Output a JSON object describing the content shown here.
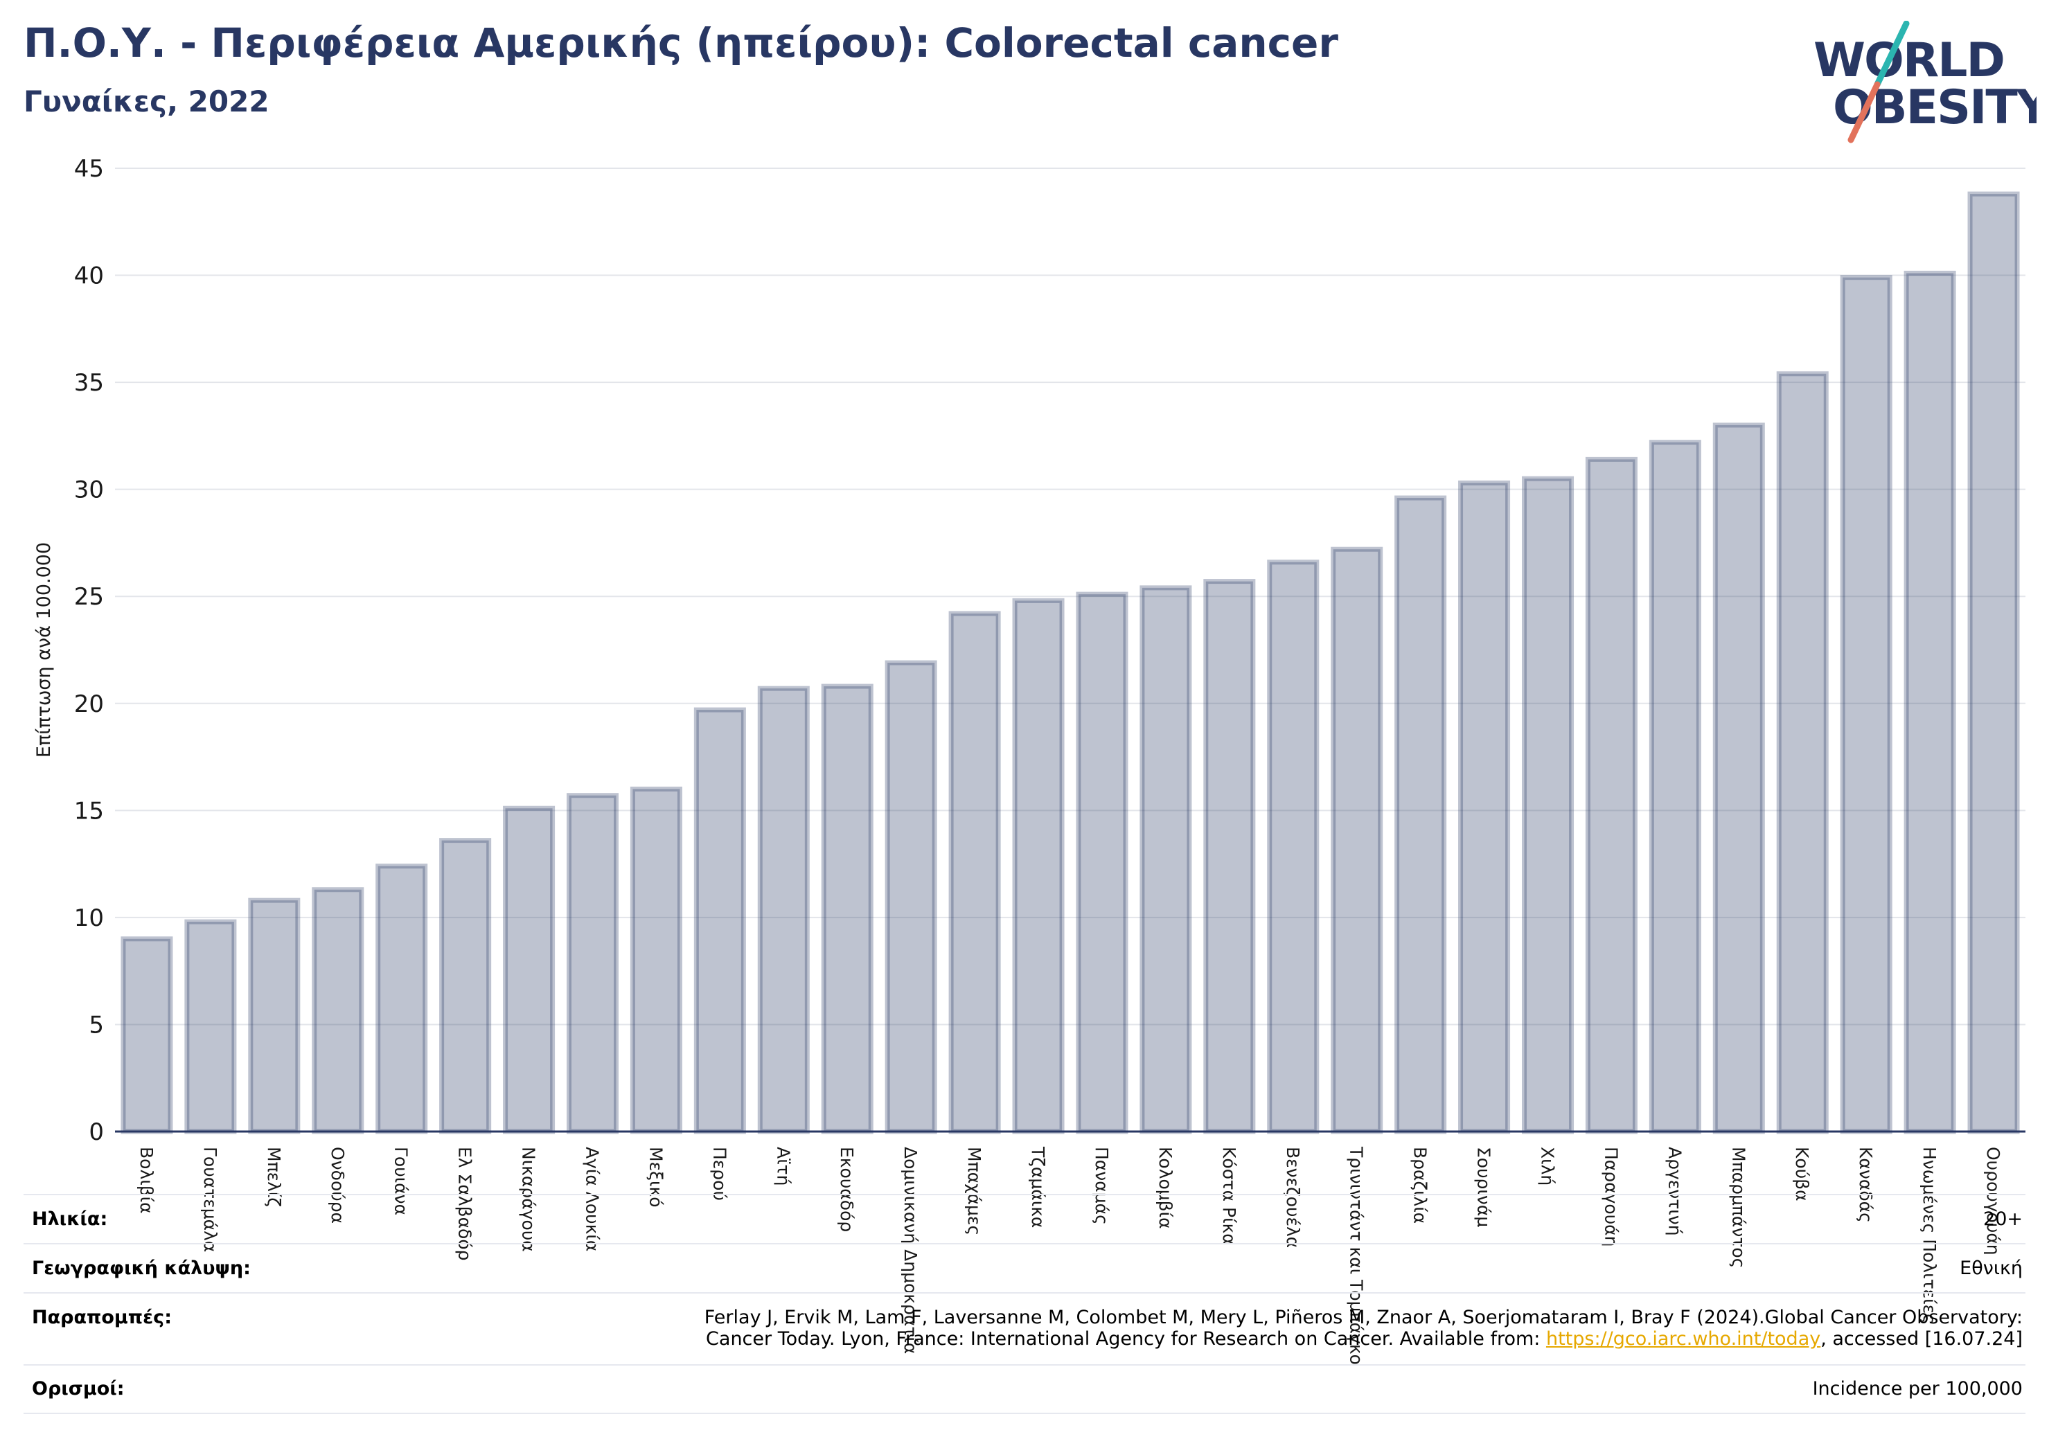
{
  "header": {
    "title": "Π.Ο.Υ. - Περιφέρεια Αμερικής (ηπείρου): Colorectal cancer",
    "subtitle": "Γυναίκες, 2022"
  },
  "logo": {
    "line1": "WORLD",
    "line2": "OBESITY",
    "text_color": "#283763",
    "slash_top_color": "#2bb5b0",
    "slash_bottom_color": "#e2725b"
  },
  "chart_data": {
    "type": "bar",
    "title": "Π.Ο.Υ. - Περιφέρεια Αμερικής (ηπείρου): Colorectal cancer",
    "subtitle": "Γυναίκες, 2022",
    "ylabel": "Επίπτωση ανά 100.000",
    "xlabel": "",
    "ylim": [
      0,
      45
    ],
    "yticks": [
      0,
      5,
      10,
      15,
      20,
      25,
      30,
      35,
      40,
      45
    ],
    "grid": true,
    "bar_color": "#283763",
    "categories": [
      "Βολιβία",
      "Γουατεμάλα",
      "Μπελίζ",
      "Ονδούρα",
      "Γουιάνα",
      "Ελ Σαλβαδόρ",
      "Νικαράγουα",
      "Αγία Λουκία",
      "Μεξικό",
      "Περού",
      "Αϊτή",
      "Εκουαδόρ",
      "Δομινικανή Δημοκρατία",
      "Μπαχάμες",
      "Τζαμάικα",
      "Παναμάς",
      "Κολομβία",
      "Κόστα Ρίκα",
      "Βενεζουέλα",
      "Τρινιντάντ και Τομπάγκο",
      "Βραζιλία",
      "Σουρινάμ",
      "Χιλή",
      "Παραγουάη",
      "Αργεντινή",
      "Μπαρμπάντος",
      "Κούβα",
      "Καναδάς",
      "Ηνωμένες Πολιτείες",
      "Ουρουγουάη"
    ],
    "values": [
      9.0,
      9.8,
      10.8,
      11.3,
      12.4,
      13.6,
      15.1,
      15.7,
      16.0,
      19.7,
      20.7,
      20.8,
      21.9,
      24.2,
      24.8,
      25.1,
      25.4,
      25.7,
      26.6,
      27.2,
      29.6,
      30.3,
      30.5,
      31.4,
      32.2,
      33.0,
      35.4,
      39.9,
      40.1,
      43.8
    ]
  },
  "footer": {
    "age_label": "Ηλικία:",
    "age_value": "20+",
    "coverage_label": "Γεωγραφική κάλυψη:",
    "coverage_value": "Εθνική",
    "refs_label": "Παραπομπές:",
    "refs_line1": "Ferlay J, Ervik M, Lam F, Laversanne M, Colombet M, Mery L, Piñeros M, Znaor A, Soerjomataram I, Bray F (2024).Global Cancer Observatory:",
    "refs_line2_pre": "Cancer Today. Lyon, France: International Agency for Research on Cancer. Available from: ",
    "refs_link": "https://gco.iarc.who.int/today",
    "refs_line2_post": ", accessed [16.07.24]",
    "defs_label": "Ορισμοί:",
    "defs_value": "Incidence per 100,000"
  }
}
